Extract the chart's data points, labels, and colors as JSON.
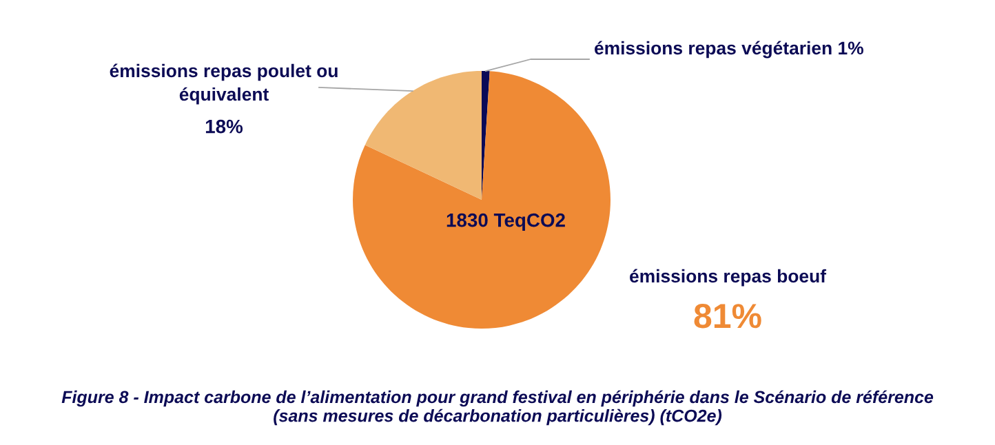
{
  "chart_data": {
    "type": "pie",
    "title": "Figure 8 - Impact carbone de l’alimentation pour grand festival en périphérie dans le Scénario de référence\n(sans mesures de décarbonation particulières) (tCO2e)",
    "categories": [
      "émissions repas végétarien",
      "émissions repas boeuf",
      "émissions repas poulet ou\néquivalent"
    ],
    "values": [
      1,
      81,
      18
    ],
    "colors": [
      "#0b0a57",
      "#ef8a35",
      "#f0b873"
    ],
    "value_labels": [
      "1%",
      "81%",
      "18%"
    ],
    "annotations": [
      "1830 TeqCO2"
    ]
  }
}
